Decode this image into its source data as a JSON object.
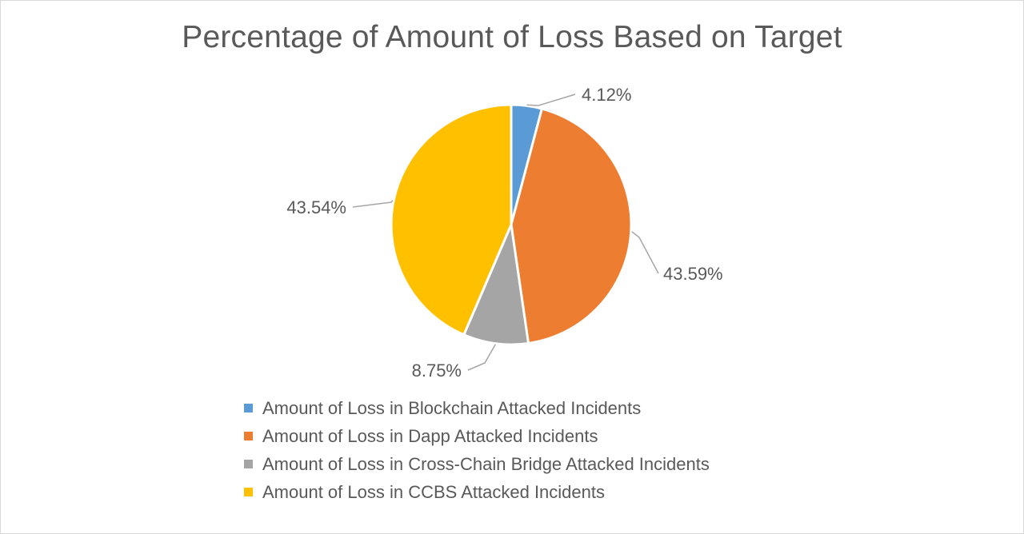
{
  "chart_data": {
    "type": "pie",
    "title": "Percentage of Amount of Loss Based on Target",
    "slices": [
      {
        "name": "Amount of Loss in Blockchain Attacked Incidents",
        "value": 4.12,
        "label": "4.12%",
        "color": "#5b9bd5"
      },
      {
        "name": "Amount of Loss in Dapp Attacked Incidents",
        "value": 43.59,
        "label": "43.59%",
        "color": "#ed7d31"
      },
      {
        "name": "Amount of Loss in Cross-Chain Bridge Attacked Incidents",
        "value": 8.75,
        "label": "8.75%",
        "color": "#a5a5a5"
      },
      {
        "name": "Amount of Loss in CCBS Attacked Incidents",
        "value": 43.54,
        "label": "43.54%",
        "color": "#ffc000"
      }
    ],
    "legend_position": "bottom",
    "start_angle": "12 o'clock",
    "direction": "clockwise"
  }
}
